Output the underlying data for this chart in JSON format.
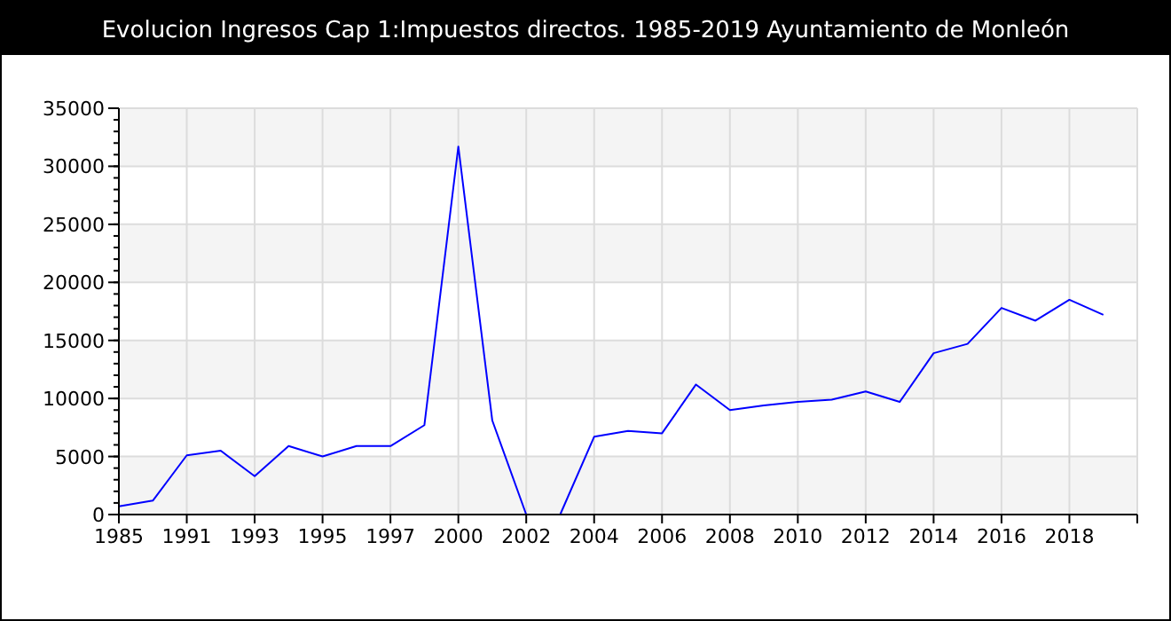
{
  "chart_data": {
    "type": "line",
    "title": "Evolucion Ingresos Cap 1:Impuestos directos. 1985-2019 Ayuntamiento de Monleón",
    "categories": [
      "1985",
      null,
      "1991",
      null,
      "1993",
      null,
      "1995",
      null,
      "1997",
      null,
      "2000",
      null,
      "2002",
      null,
      "2004",
      null,
      "2006",
      null,
      "2008",
      null,
      "2010",
      null,
      "2012",
      null,
      "2014",
      null,
      "2016",
      null,
      "2018",
      null
    ],
    "series": [
      {
        "color": "#0000ff",
        "values": [
          700,
          1200,
          5100,
          5500,
          3300,
          5900,
          5000,
          5900,
          5900,
          7700,
          31700,
          8100,
          0,
          0,
          6700,
          7200,
          7000,
          11200,
          9000,
          9400,
          9700,
          9900,
          10600,
          9700,
          13900,
          14700,
          17800,
          16700,
          18500,
          17200
        ]
      }
    ],
    "ylim": [
      0,
      35000
    ],
    "yticks": [
      0,
      5000,
      10000,
      15000,
      20000,
      25000,
      30000,
      35000
    ],
    "grid": true,
    "marker": "none",
    "line_style": "solid"
  }
}
